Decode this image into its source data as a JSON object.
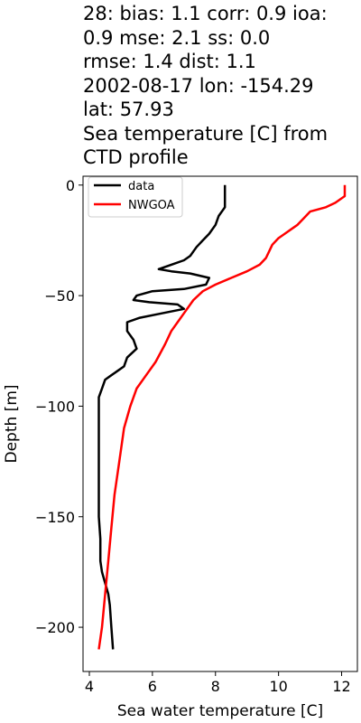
{
  "title_lines": [
    "28: bias: 1.1  corr: 0.9  ioa:",
    "0.9  mse: 2.1  ss: 0.0",
    "rmse: 1.4  dist: 1.1",
    "2002-08-17 lon: -154.29",
    "lat: 57.93",
    "Sea temperature [C] from",
    "CTD profile"
  ],
  "chart_data": {
    "type": "line",
    "title": "28: bias: 1.1  corr: 0.9  ioa: 0.9  mse: 2.1  ss: 0.0 rmse: 1.4  dist: 1.1 2002-08-17 lon: -154.29 lat: 57.93 Sea temperature [C] from CTD profile",
    "xlabel": "Sea water temperature [C]",
    "ylabel": "Depth [m]",
    "xlim": [
      3.8,
      12.5
    ],
    "ylim": [
      -220,
      4
    ],
    "xticks": [
      4,
      6,
      8,
      10,
      12
    ],
    "yticks": [
      0,
      -50,
      -100,
      -150,
      -200
    ],
    "xtick_labels": [
      "4",
      "6",
      "8",
      "10",
      "12"
    ],
    "ytick_labels": [
      "0",
      "−50",
      "−100",
      "−150",
      "−200"
    ],
    "grid": false,
    "legend_position": "top-left",
    "series": [
      {
        "name": "data",
        "color": "#000000",
        "points": [
          [
            8.3,
            0
          ],
          [
            8.3,
            -5
          ],
          [
            8.3,
            -10
          ],
          [
            8.1,
            -14
          ],
          [
            8.0,
            -18
          ],
          [
            7.8,
            -22
          ],
          [
            7.6,
            -25
          ],
          [
            7.4,
            -28
          ],
          [
            7.3,
            -30
          ],
          [
            7.2,
            -32
          ],
          [
            7.0,
            -34
          ],
          [
            6.6,
            -36
          ],
          [
            6.2,
            -38
          ],
          [
            6.6,
            -39
          ],
          [
            7.2,
            -40
          ],
          [
            7.8,
            -42
          ],
          [
            7.7,
            -45
          ],
          [
            7.0,
            -47
          ],
          [
            6.0,
            -48
          ],
          [
            5.5,
            -50
          ],
          [
            5.4,
            -52
          ],
          [
            5.9,
            -53
          ],
          [
            6.8,
            -54
          ],
          [
            7.0,
            -56
          ],
          [
            6.3,
            -58
          ],
          [
            5.6,
            -60
          ],
          [
            5.2,
            -62
          ],
          [
            5.2,
            -66
          ],
          [
            5.4,
            -70
          ],
          [
            5.5,
            -74
          ],
          [
            5.2,
            -78
          ],
          [
            5.1,
            -82
          ],
          [
            4.9,
            -84
          ],
          [
            4.7,
            -86
          ],
          [
            4.5,
            -88
          ],
          [
            4.4,
            -92
          ],
          [
            4.3,
            -96
          ],
          [
            4.3,
            -100
          ],
          [
            4.3,
            -110
          ],
          [
            4.3,
            -120
          ],
          [
            4.3,
            -130
          ],
          [
            4.3,
            -140
          ],
          [
            4.3,
            -150
          ],
          [
            4.35,
            -160
          ],
          [
            4.35,
            -170
          ],
          [
            4.4,
            -175
          ],
          [
            4.5,
            -180
          ],
          [
            4.6,
            -185
          ],
          [
            4.65,
            -190
          ],
          [
            4.7,
            -200
          ],
          [
            4.75,
            -210
          ]
        ]
      },
      {
        "name": "NWGOA",
        "color": "#ff0000",
        "points": [
          [
            12.1,
            0
          ],
          [
            12.1,
            -5
          ],
          [
            11.8,
            -8
          ],
          [
            11.5,
            -10
          ],
          [
            11.0,
            -12
          ],
          [
            10.8,
            -15
          ],
          [
            10.6,
            -18
          ],
          [
            10.4,
            -20
          ],
          [
            10.2,
            -22
          ],
          [
            10.0,
            -24
          ],
          [
            9.8,
            -27
          ],
          [
            9.7,
            -30
          ],
          [
            9.6,
            -33
          ],
          [
            9.4,
            -36
          ],
          [
            9.0,
            -39
          ],
          [
            8.5,
            -42
          ],
          [
            8.0,
            -45
          ],
          [
            7.6,
            -48
          ],
          [
            7.3,
            -52
          ],
          [
            7.0,
            -58
          ],
          [
            6.8,
            -62
          ],
          [
            6.6,
            -66
          ],
          [
            6.4,
            -72
          ],
          [
            6.1,
            -80
          ],
          [
            5.8,
            -86
          ],
          [
            5.5,
            -92
          ],
          [
            5.3,
            -100
          ],
          [
            5.1,
            -110
          ],
          [
            4.95,
            -125
          ],
          [
            4.8,
            -140
          ],
          [
            4.7,
            -155
          ],
          [
            4.6,
            -170
          ],
          [
            4.5,
            -185
          ],
          [
            4.4,
            -200
          ],
          [
            4.3,
            -210
          ]
        ]
      }
    ]
  }
}
